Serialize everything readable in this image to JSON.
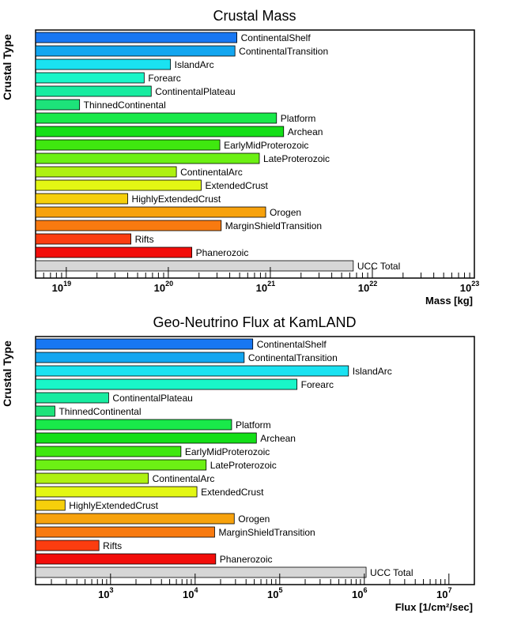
{
  "chart_data": [
    {
      "type": "bar",
      "orientation": "horizontal",
      "title": "Crustal Mass",
      "ylabel": "Crustal Type",
      "xlabel": "Mass [kg]",
      "xscale": "log",
      "xlim": [
        5e+18,
        1e+23
      ],
      "xticks": [
        {
          "base": "10",
          "exp": "19",
          "value": 1e+19
        },
        {
          "base": "10",
          "exp": "20",
          "value": 1e+20
        },
        {
          "base": "10",
          "exp": "21",
          "value": 1e+21
        },
        {
          "base": "10",
          "exp": "22",
          "value": 1e+22
        },
        {
          "base": "10",
          "exp": "23",
          "value": 1e+23
        }
      ],
      "categories": [
        "ContinentalShelf",
        "ContinentalTransition",
        "IslandArc",
        "Forearc",
        "ContinentalPlateau",
        "ThinnedContinental",
        "Platform",
        "Archean",
        "EarlyMidProterozoic",
        "LateProterozoic",
        "ContinentalArc",
        "ExtendedCrust",
        "HighlyExtendedCrust",
        "Orogen",
        "MarginShieldTransition",
        "Rifts",
        "Phanerozoic",
        "UCC Total"
      ],
      "values": [
        4.7e+20,
        4.5e+20,
        1.05e+20,
        5.8e+19,
        6.8e+19,
        1.35e+19,
        1.15e+21,
        1.35e+21,
        3.2e+20,
        7.8e+20,
        1.2e+20,
        2.1e+20,
        4e+19,
        9e+20,
        3.3e+20,
        4.3e+19,
        1.7e+20,
        6.5e+21
      ],
      "colors": [
        "#1877f2",
        "#13a6f0",
        "#1ae2f1",
        "#19f6c8",
        "#17eca0",
        "#1de37a",
        "#19e94a",
        "#14df18",
        "#3fe80f",
        "#6cf014",
        "#aef112",
        "#e3f714",
        "#f6cf0b",
        "#f7a20d",
        "#f87a10",
        "#fb3d10",
        "#f20d0a",
        "#d6d6d6"
      ]
    },
    {
      "type": "bar",
      "orientation": "horizontal",
      "title": "Geo-Neutrino Flux at KamLAND",
      "ylabel": "Crustal Type",
      "xlabel": "Flux [1/cm²/sec]",
      "xscale": "log",
      "xlim": [
        130,
        20000000.0
      ],
      "xticks": [
        {
          "base": "10",
          "exp": "3",
          "value": 1000.0
        },
        {
          "base": "10",
          "exp": "4",
          "value": 10000.0
        },
        {
          "base": "10",
          "exp": "5",
          "value": 100000.0
        },
        {
          "base": "10",
          "exp": "6",
          "value": 1000000.0
        },
        {
          "base": "10",
          "exp": "7",
          "value": 10000000.0
        }
      ],
      "categories": [
        "ContinentalShelf",
        "ContinentalTransition",
        "IslandArc",
        "Forearc",
        "ContinentalPlateau",
        "ThinnedContinental",
        "Platform",
        "Archean",
        "EarlyMidProterozoic",
        "LateProterozoic",
        "ContinentalArc",
        "ExtendedCrust",
        "HighlyExtendedCrust",
        "Orogen",
        "MarginShieldTransition",
        "Rifts",
        "Phanerozoic",
        "UCC Total"
      ],
      "values": [
        48000.0,
        38000.0,
        650000.0,
        160000.0,
        950,
        220,
        27000.0,
        53000.0,
        6800.0,
        13500.0,
        2800.0,
        10500.0,
        290,
        29000.0,
        17000.0,
        730,
        17500.0,
        1050000.0
      ],
      "colors": [
        "#1877f2",
        "#13a6f0",
        "#1ae2f1",
        "#19f6c8",
        "#17eca0",
        "#1de37a",
        "#19e94a",
        "#14df18",
        "#3fe80f",
        "#6cf014",
        "#aef112",
        "#e3f714",
        "#f6cf0b",
        "#f7a20d",
        "#f87a10",
        "#fb3d10",
        "#f20d0a",
        "#d6d6d6"
      ]
    }
  ]
}
